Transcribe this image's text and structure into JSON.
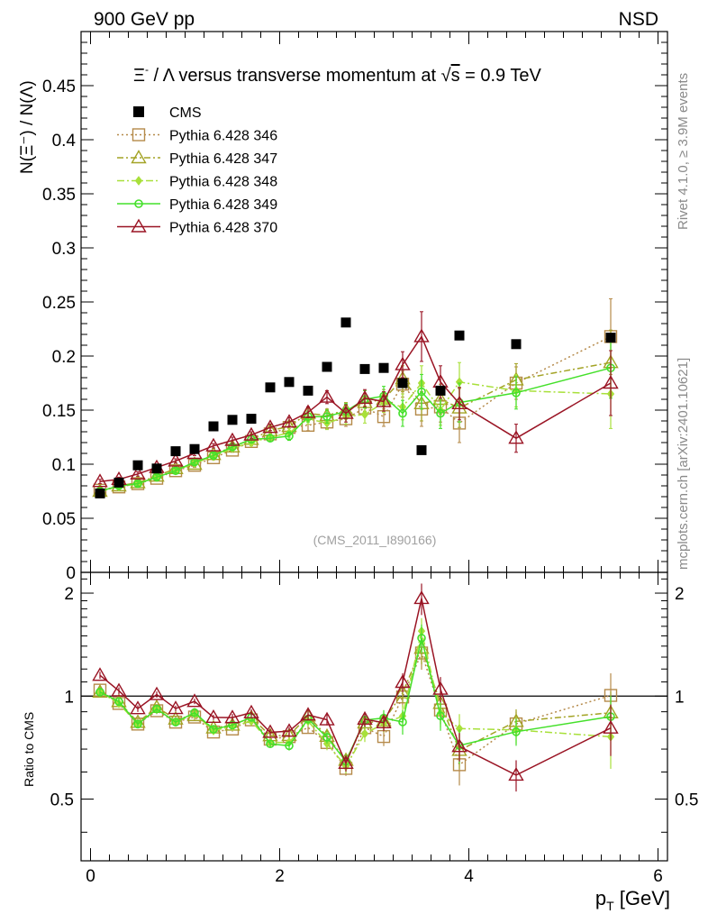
{
  "header": {
    "left": "900 GeV pp",
    "right": "NSD"
  },
  "side_labels": {
    "rivet": "Rivet 4.1.0, ≥ 3.9M events",
    "mcplots": "mcplots.cern.ch [arXiv:2401.10621]"
  },
  "analysis_tag": "(CMS_2011_I890166)",
  "chart_data": [
    {
      "type": "line",
      "title": "Ξ⁻ / Λ versus transverse momentum at √s = 0.9 TeV",
      "title_parts": {
        "prefix": "Ξ",
        "sup": "-",
        "rest": " / Λ versus transverse momentum at ",
        "root": "s",
        "suffix": " = 0.9 TeV"
      },
      "ylabel": "N(Ξ⁻) / N(Λ)",
      "xlabel": "p_T [GeV]",
      "xlim": [
        -0.1,
        6.1
      ],
      "ylim": [
        0,
        0.5
      ],
      "yticks": [
        0,
        0.05,
        0.1,
        0.15,
        0.2,
        0.25,
        0.3,
        0.35,
        0.4,
        0.45
      ],
      "ytick_labels": [
        "0",
        "0.05",
        "0.1",
        "0.15",
        "0.2",
        "0.25",
        "0.3",
        "0.35",
        "0.4",
        "0.45"
      ],
      "xticks": [
        0,
        2,
        4,
        6
      ],
      "xtick_labels": [
        "0",
        "2",
        "4",
        "6"
      ],
      "x": [
        0.1,
        0.3,
        0.5,
        0.7,
        0.9,
        1.1,
        1.3,
        1.5,
        1.7,
        1.9,
        2.1,
        2.3,
        2.5,
        2.7,
        2.9,
        3.1,
        3.3,
        3.5,
        3.7,
        3.9,
        4.5,
        5.5
      ],
      "data": {
        "name": "CMS",
        "values": [
          0.073,
          0.083,
          0.099,
          0.096,
          0.112,
          0.114,
          0.135,
          0.141,
          0.142,
          0.171,
          0.176,
          0.168,
          0.19,
          0.231,
          0.188,
          0.189,
          0.175,
          0.113,
          0.168,
          0.219,
          0.211,
          0.217
        ]
      },
      "series": [
        {
          "name": "Pythia 6.428 346",
          "color": "#b58a4a",
          "marker": "square",
          "dash": "2,3",
          "values": [
            0.076,
            0.079,
            0.082,
            0.087,
            0.094,
            0.099,
            0.106,
            0.113,
            0.121,
            0.128,
            0.134,
            0.136,
            0.139,
            0.142,
            0.152,
            0.144,
            0.174,
            0.151,
            0.153,
            0.138,
            0.175,
            0.218
          ],
          "err": [
            0.002,
            0.002,
            0.002,
            0.002,
            0.002,
            0.002,
            0.002,
            0.002,
            0.003,
            0.003,
            0.004,
            0.005,
            0.006,
            0.007,
            0.008,
            0.009,
            0.012,
            0.016,
            0.014,
            0.018,
            0.015,
            0.035
          ]
        },
        {
          "name": "Pythia 6.428 347",
          "color": "#a3a325",
          "marker": "triangle",
          "dash": "7,3,2,3",
          "values": [
            0.075,
            0.08,
            0.083,
            0.089,
            0.096,
            0.1,
            0.109,
            0.116,
            0.123,
            0.131,
            0.135,
            0.147,
            0.145,
            0.15,
            0.157,
            0.16,
            0.179,
            0.156,
            0.16,
            0.152,
            0.178,
            0.194
          ],
          "err": [
            0.002,
            0.002,
            0.002,
            0.002,
            0.002,
            0.002,
            0.002,
            0.002,
            0.003,
            0.003,
            0.004,
            0.005,
            0.006,
            0.007,
            0.008,
            0.009,
            0.012,
            0.016,
            0.014,
            0.018,
            0.015,
            0.03
          ]
        },
        {
          "name": "Pythia 6.428 348",
          "color": "#a8e03a",
          "marker": "diamond",
          "dash": "8,3,2,3",
          "values": [
            0.075,
            0.079,
            0.082,
            0.088,
            0.094,
            0.101,
            0.107,
            0.115,
            0.12,
            0.125,
            0.129,
            0.142,
            0.138,
            0.144,
            0.146,
            0.157,
            0.153,
            0.175,
            0.15,
            0.176,
            0.168,
            0.165
          ],
          "err": [
            0.002,
            0.002,
            0.002,
            0.002,
            0.002,
            0.002,
            0.002,
            0.002,
            0.003,
            0.003,
            0.004,
            0.005,
            0.006,
            0.007,
            0.008,
            0.009,
            0.012,
            0.016,
            0.014,
            0.018,
            0.015,
            0.032
          ]
        },
        {
          "name": "Pythia 6.428 349",
          "color": "#44e02a",
          "marker": "circle",
          "dash": "",
          "values": [
            0.075,
            0.08,
            0.082,
            0.088,
            0.094,
            0.102,
            0.108,
            0.116,
            0.123,
            0.124,
            0.126,
            0.144,
            0.144,
            0.149,
            0.16,
            0.163,
            0.147,
            0.167,
            0.147,
            0.157,
            0.166,
            0.189
          ],
          "err": [
            0.002,
            0.002,
            0.002,
            0.002,
            0.002,
            0.002,
            0.002,
            0.002,
            0.003,
            0.003,
            0.004,
            0.005,
            0.006,
            0.007,
            0.008,
            0.009,
            0.012,
            0.016,
            0.014,
            0.018,
            0.015,
            0.028
          ]
        },
        {
          "name": "Pythia 6.428 370",
          "color": "#9a1424",
          "marker": "triangle",
          "dash": "",
          "values": [
            0.084,
            0.086,
            0.091,
            0.097,
            0.103,
            0.11,
            0.117,
            0.122,
            0.127,
            0.134,
            0.139,
            0.148,
            0.162,
            0.147,
            0.161,
            0.158,
            0.192,
            0.218,
            0.176,
            0.156,
            0.124,
            0.175
          ],
          "err": [
            0.002,
            0.002,
            0.002,
            0.002,
            0.002,
            0.002,
            0.002,
            0.003,
            0.003,
            0.003,
            0.004,
            0.005,
            0.006,
            0.008,
            0.008,
            0.009,
            0.012,
            0.023,
            0.015,
            0.015,
            0.013,
            0.03
          ]
        }
      ]
    },
    {
      "type": "line",
      "title": "Ratio to CMS",
      "ylabel": "Ratio to CMS",
      "xlabel": "p_T [GeV]",
      "xlim": [
        -0.1,
        6.1
      ],
      "ylim": [
        0.33,
        2.3
      ],
      "yticks": [
        0.5,
        1,
        2
      ],
      "ytick_labels": [
        "0.5",
        "1",
        "2"
      ],
      "reference_line": 1,
      "note": "Ratios of each Pythia series to CMS at the same x values"
    }
  ]
}
